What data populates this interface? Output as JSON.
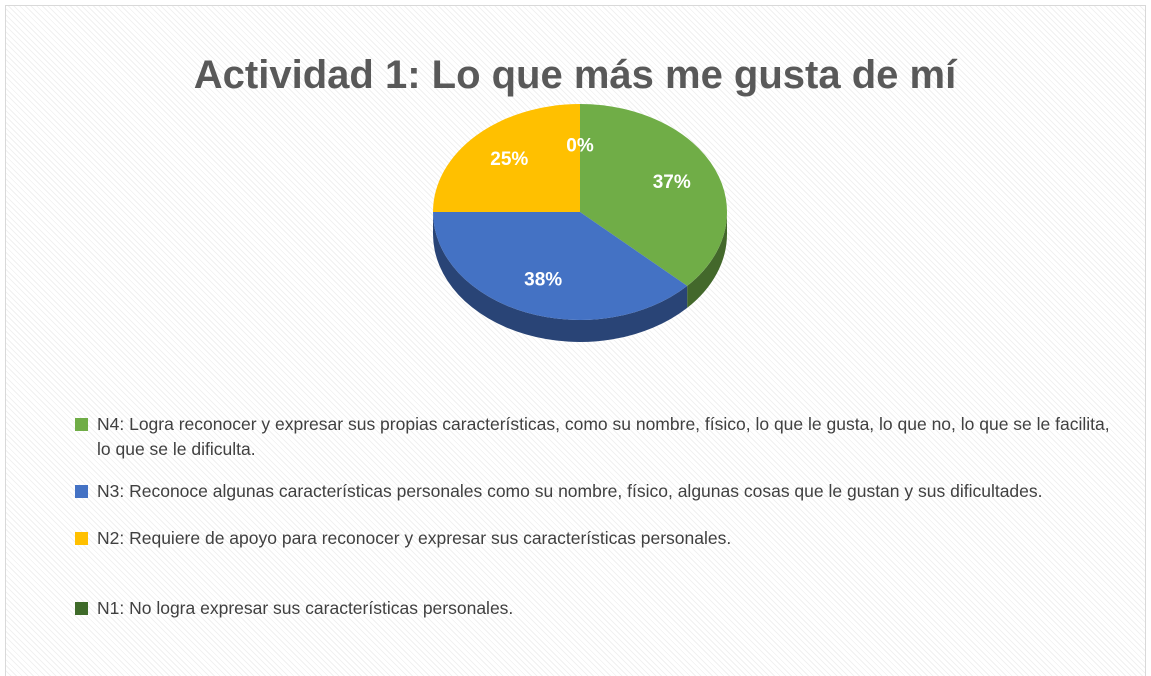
{
  "chart_data": {
    "type": "pie",
    "title": "Actividad 1: Lo que más me gusta de mí",
    "categories": [
      "N4: Logra reconocer y expresar sus propias características, como su nombre, físico, lo que le gusta, lo que no, lo que se le facilita, lo que se le dificulta.",
      "N3: Reconoce algunas características personales como su nombre, físico, algunas cosas que le gustan y sus dificultades.",
      "N2: Requiere de apoyo para reconocer y expresar sus características personales.",
      "N1: No logra expresar sus características personales."
    ],
    "values": [
      37,
      38,
      25,
      0
    ],
    "value_labels": [
      "37%",
      "38%",
      "25%",
      "0%"
    ],
    "colors": [
      "#70ad47",
      "#4472c4",
      "#ffc000",
      "#3f6b2a"
    ],
    "legend": "bottom"
  }
}
